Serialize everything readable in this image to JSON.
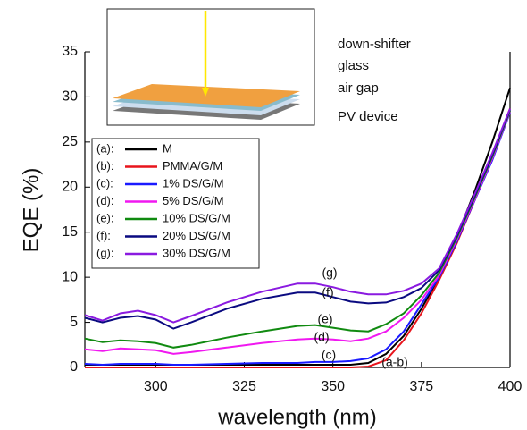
{
  "chart_data": {
    "type": "line",
    "xlabel": "wavelength (nm)",
    "ylabel": "EQE (%)",
    "x": [
      280,
      285,
      290,
      295,
      300,
      305,
      310,
      320,
      330,
      340,
      345,
      350,
      355,
      360,
      365,
      370,
      375,
      380,
      385,
      390,
      395,
      400
    ],
    "xlim": [
      280,
      400
    ],
    "xticks": [
      300,
      325,
      350,
      375,
      400
    ],
    "ylim": [
      0,
      35
    ],
    "yticks": [
      0,
      5,
      10,
      15,
      20,
      25,
      30,
      35
    ],
    "series": [
      {
        "tag": "(a):",
        "name": "M",
        "color": "#000000",
        "values": [
          0.3,
          0.3,
          0.3,
          0.3,
          0.3,
          0.3,
          0.3,
          0.3,
          0.3,
          0.3,
          0.3,
          0.3,
          0.3,
          0.5,
          1.5,
          3.5,
          6.5,
          10,
          14.5,
          19.5,
          25,
          31
        ]
      },
      {
        "tag": "(b):",
        "name": "PMMA/G/M",
        "color": "#e8141c",
        "values": [
          0,
          0,
          0,
          0,
          0,
          0,
          0,
          0,
          0,
          0,
          0,
          0,
          0,
          0.1,
          0.8,
          3,
          6,
          9.7,
          13.8,
          18.5,
          23.5,
          28.7
        ]
      },
      {
        "tag": "(c):",
        "name": "1% DS/G/M",
        "color": "#1a1aff",
        "values": [
          0.4,
          0.3,
          0.4,
          0.4,
          0.4,
          0.3,
          0.3,
          0.4,
          0.5,
          0.5,
          0.6,
          0.6,
          0.7,
          1,
          2,
          4,
          7,
          10,
          14,
          18.5,
          23,
          28.3
        ]
      },
      {
        "tag": "(d):",
        "name": "5% DS/G/M",
        "color": "#f018f0",
        "values": [
          2,
          1.8,
          2.1,
          2,
          1.9,
          1.5,
          1.7,
          2.2,
          2.7,
          3.1,
          3.2,
          3.1,
          2.9,
          3.2,
          4,
          5.5,
          7.5,
          10.2,
          14.2,
          18.6,
          23.2,
          28.4
        ]
      },
      {
        "tag": "(e):",
        "name": "10% DS/G/M",
        "color": "#108a10",
        "values": [
          3.2,
          2.8,
          3,
          2.9,
          2.7,
          2.2,
          2.5,
          3.3,
          4,
          4.6,
          4.7,
          4.4,
          4.1,
          4,
          4.8,
          6,
          8,
          10.5,
          14.4,
          18.8,
          23.4,
          28.5
        ]
      },
      {
        "tag": "(f):",
        "name": "20% DS/G/M",
        "color": "#0a0a80",
        "values": [
          5.5,
          5,
          5.5,
          5.7,
          5.3,
          4.3,
          5,
          6.5,
          7.6,
          8.3,
          8.3,
          7.8,
          7.3,
          7.1,
          7.2,
          7.8,
          8.8,
          10.8,
          14.6,
          19,
          23.6,
          28.6
        ]
      },
      {
        "tag": "(g):",
        "name": "30% DS/G/M",
        "color": "#8a1ae0",
        "values": [
          5.8,
          5.2,
          6,
          6.3,
          5.8,
          5,
          5.7,
          7.2,
          8.4,
          9.3,
          9.3,
          8.9,
          8.4,
          8.1,
          8.1,
          8.5,
          9.3,
          11,
          14.8,
          19.2,
          23.8,
          28.7
        ]
      }
    ],
    "annotations": [
      "(g)",
      "(f)",
      "(e)",
      "(d)",
      "(c)",
      "(a-b)"
    ],
    "inset_labels": [
      "down-shifter",
      "glass",
      "air gap",
      "PV device"
    ]
  }
}
